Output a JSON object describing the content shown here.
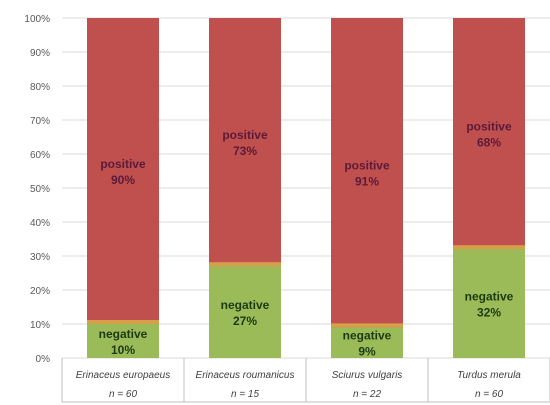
{
  "chart_data": {
    "type": "bar",
    "stacked": true,
    "percent": true,
    "ylim": [
      0,
      100
    ],
    "y_ticks": [
      "0%",
      "10%",
      "20%",
      "30%",
      "40%",
      "50%",
      "60%",
      "70%",
      "80%",
      "90%",
      "100%"
    ],
    "categories": [
      "Erinaceus europaeus",
      "Erinaceus roumanicus",
      "Sciurus vulgaris",
      "Turdus merula"
    ],
    "sample_sizes": [
      "n = 60",
      "n = 15",
      "n = 22",
      "n = 60"
    ],
    "series": [
      {
        "name": "negative",
        "values": [
          10,
          27,
          9,
          32
        ],
        "labels": [
          "10%",
          "27%",
          "9%",
          "32%"
        ],
        "color": "#9bbb59",
        "label_color": "#1d3a12"
      },
      {
        "name": "positive",
        "values": [
          90,
          73,
          91,
          68
        ],
        "labels": [
          "90%",
          "73%",
          "91%",
          "68%"
        ],
        "color": "#c0504d",
        "label_color": "#5c1a3a"
      }
    ],
    "colors": {
      "separator": "#d6a04a",
      "grid": "#d9d9d9",
      "axis": "#bfbfbf"
    },
    "grid": true,
    "legend": "none"
  }
}
